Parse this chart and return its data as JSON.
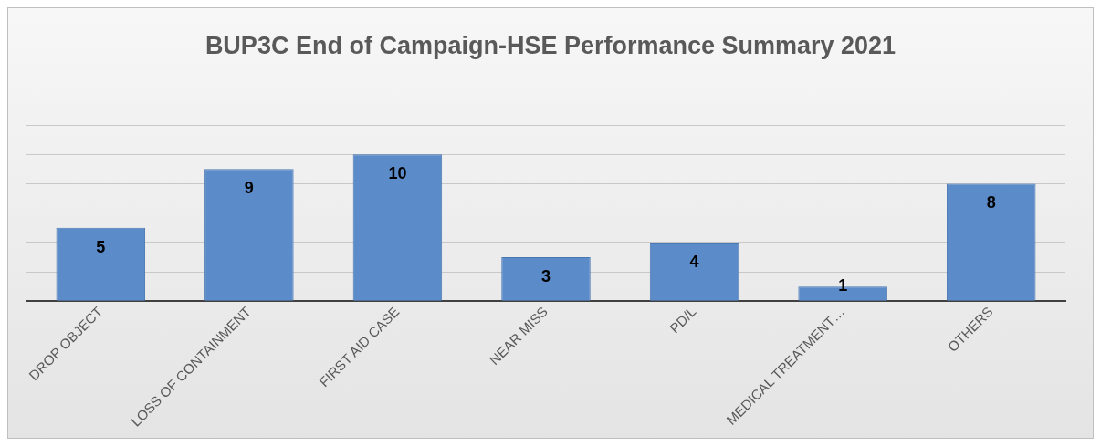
{
  "chart_data": {
    "type": "bar",
    "title": "BUP3C End of Campaign-HSE Performance Summary 2021",
    "categories": [
      "DROP OBJECT",
      "LOSS OF CONTAINMENT",
      "FIRST AID CASE",
      "NEAR MISS",
      "PD/L",
      "MEDICAL TREATMENT…",
      "OTHERS"
    ],
    "values": [
      5,
      9,
      10,
      3,
      4,
      1,
      8
    ],
    "color": "#5b8bc9",
    "ylim": [
      0,
      12
    ],
    "yticks": [
      0,
      {
        "value": 2,
        "label": null
      },
      {
        "value": 4,
        "label": null
      },
      {
        "value": 6,
        "label": null
      },
      {
        "value": 8,
        "label": null
      },
      {
        "value": 10,
        "label": null
      },
      {
        "value": 12,
        "label": null
      }
    ],
    "grid": "y",
    "tick_labels": "x",
    "data_labels": true
  }
}
